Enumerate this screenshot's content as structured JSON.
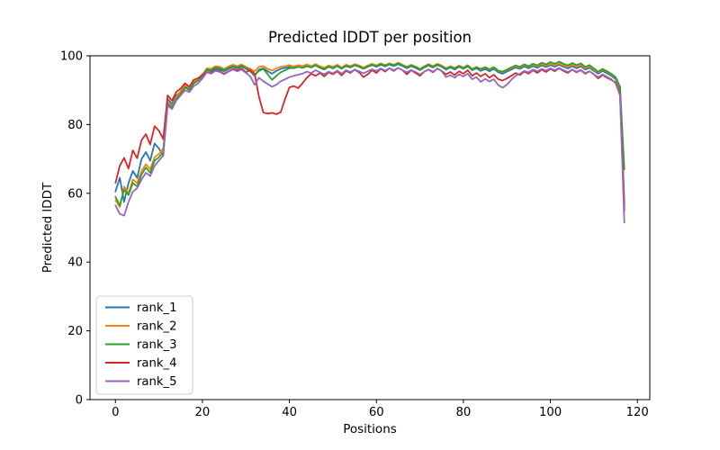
{
  "window": {
    "background": "#ffffff"
  },
  "chart_data": {
    "type": "line",
    "title": "Predicted lDDT per position",
    "xlabel": "Positions",
    "ylabel": "Predicted lDDT",
    "xlim": [
      -5.85,
      122.85
    ],
    "ylim": [
      0,
      100
    ],
    "xticks": [
      0,
      20,
      40,
      60,
      80,
      100,
      120
    ],
    "yticks": [
      0,
      20,
      40,
      60,
      80,
      100
    ],
    "grid": false,
    "legend_position": "lower left",
    "axis_color": "#000000",
    "x": [
      0,
      1,
      2,
      3,
      4,
      5,
      6,
      7,
      8,
      9,
      10,
      11,
      12,
      13,
      14,
      15,
      16,
      17,
      18,
      19,
      20,
      21,
      22,
      23,
      24,
      25,
      26,
      27,
      28,
      29,
      30,
      31,
      32,
      33,
      34,
      35,
      36,
      37,
      38,
      39,
      40,
      41,
      42,
      43,
      44,
      45,
      46,
      47,
      48,
      49,
      50,
      51,
      52,
      53,
      54,
      55,
      56,
      57,
      58,
      59,
      60,
      61,
      62,
      63,
      64,
      65,
      66,
      67,
      68,
      69,
      70,
      71,
      72,
      73,
      74,
      75,
      76,
      77,
      78,
      79,
      80,
      81,
      82,
      83,
      84,
      85,
      86,
      87,
      88,
      89,
      90,
      91,
      92,
      93,
      94,
      95,
      96,
      97,
      98,
      99,
      100,
      101,
      102,
      103,
      104,
      105,
      106,
      107,
      108,
      109,
      110,
      111,
      112,
      113,
      114,
      115,
      116,
      117
    ],
    "series": [
      {
        "name": "rank_1",
        "color": "#1f77b4",
        "values": [
          60.5,
          64.5,
          57.5,
          63.0,
          66.5,
          64.5,
          70.0,
          72.0,
          69.5,
          74.5,
          73.0,
          71.0,
          87.5,
          86.0,
          88.5,
          89.5,
          91.0,
          90.2,
          92.0,
          92.8,
          94.0,
          95.8,
          95.5,
          96.3,
          96.0,
          95.5,
          96.2,
          96.8,
          96.4,
          96.9,
          96.2,
          95.5,
          94.2,
          96.0,
          96.4,
          95.5,
          94.8,
          95.6,
          96.2,
          96.5,
          96.8,
          96.4,
          96.8,
          96.5,
          97.0,
          96.6,
          97.2,
          96.5,
          96.0,
          96.8,
          96.3,
          97.0,
          96.2,
          97.0,
          96.6,
          97.2,
          96.8,
          96.2,
          96.8,
          97.3,
          96.8,
          97.4,
          96.9,
          97.5,
          97.0,
          97.6,
          97.0,
          96.4,
          97.0,
          96.5,
          95.8,
          96.6,
          97.2,
          96.6,
          97.3,
          96.8,
          96.0,
          96.6,
          96.0,
          96.8,
          96.2,
          96.9,
          95.8,
          96.4,
          95.6,
          96.2,
          95.5,
          96.2,
          95.2,
          94.8,
          95.4,
          96.0,
          96.6,
          96.2,
          96.9,
          96.4,
          97.0,
          96.5,
          97.2,
          96.7,
          97.3,
          96.8,
          97.4,
          96.8,
          96.3,
          97.0,
          96.4,
          96.9,
          96.0,
          96.5,
          95.6,
          94.8,
          95.6,
          94.9,
          94.2,
          93.2,
          90.0,
          57.5
        ]
      },
      {
        "name": "rank_2",
        "color": "#ff7f0e",
        "values": [
          58.0,
          56.0,
          62.0,
          60.0,
          64.0,
          63.0,
          66.5,
          68.5,
          67.0,
          70.5,
          71.5,
          73.0,
          86.5,
          85.5,
          88.0,
          89.8,
          91.5,
          90.8,
          92.5,
          93.2,
          94.5,
          96.4,
          96.2,
          97.0,
          96.8,
          96.2,
          96.9,
          97.4,
          97.0,
          97.5,
          96.8,
          96.2,
          95.5,
          96.8,
          97.0,
          96.2,
          95.7,
          96.3,
          96.8,
          97.0,
          97.3,
          96.9,
          97.3,
          97.0,
          97.5,
          97.0,
          97.6,
          97.0,
          96.5,
          97.2,
          96.8,
          97.4,
          96.6,
          97.4,
          97.0,
          97.6,
          97.2,
          96.6,
          97.2,
          97.7,
          97.2,
          97.8,
          97.3,
          97.8,
          97.4,
          98.0,
          97.4,
          96.8,
          97.4,
          96.9,
          96.2,
          97.0,
          97.6,
          97.0,
          97.7,
          97.2,
          96.4,
          97.0,
          96.5,
          97.2,
          96.6,
          97.3,
          96.2,
          96.8,
          96.0,
          96.6,
          96.0,
          96.6,
          95.6,
          95.2,
          95.8,
          96.4,
          97.0,
          96.6,
          97.3,
          96.8,
          97.4,
          96.9,
          97.6,
          97.1,
          97.7,
          97.2,
          97.8,
          97.2,
          96.7,
          97.4,
          96.8,
          97.3,
          96.4,
          96.9,
          96.0,
          95.2,
          96.0,
          95.3,
          94.6,
          93.6,
          90.5,
          56.0
        ]
      },
      {
        "name": "rank_3",
        "color": "#2ca02c",
        "values": [
          59.0,
          56.5,
          61.0,
          59.5,
          63.0,
          62.0,
          65.5,
          67.5,
          66.0,
          69.5,
          70.5,
          72.0,
          86.0,
          85.0,
          87.5,
          89.0,
          90.8,
          90.0,
          92.0,
          92.8,
          94.2,
          96.0,
          95.8,
          96.6,
          96.4,
          95.8,
          96.5,
          97.0,
          96.6,
          97.2,
          96.4,
          95.8,
          94.3,
          95.6,
          96.2,
          94.6,
          93.0,
          94.2,
          95.2,
          95.8,
          96.4,
          96.5,
          96.8,
          96.5,
          97.0,
          96.7,
          97.3,
          96.6,
          96.1,
          96.9,
          96.4,
          97.1,
          96.3,
          97.1,
          96.7,
          97.3,
          96.9,
          96.3,
          96.9,
          97.4,
          97.0,
          97.6,
          97.1,
          97.7,
          97.2,
          97.8,
          97.2,
          96.6,
          97.2,
          96.7,
          96.0,
          96.8,
          97.4,
          96.8,
          97.5,
          97.0,
          96.2,
          96.8,
          96.3,
          97.0,
          96.4,
          97.1,
          96.0,
          96.6,
          96.2,
          96.7,
          96.1,
          96.7,
          95.7,
          95.4,
          96.0,
          96.6,
          97.2,
          96.8,
          97.5,
          97.0,
          97.7,
          97.2,
          98.0,
          97.5,
          98.2,
          97.7,
          98.3,
          97.7,
          97.2,
          97.9,
          97.3,
          97.8,
          96.8,
          97.3,
          96.3,
          95.4,
          96.2,
          95.5,
          94.8,
          93.8,
          91.0,
          67.0
        ]
      },
      {
        "name": "rank_4",
        "color": "#d62728",
        "values": [
          63.0,
          68.0,
          70.3,
          67.2,
          72.5,
          70.2,
          75.5,
          77.2,
          74.2,
          79.5,
          78.2,
          75.8,
          88.5,
          87.0,
          89.5,
          90.5,
          92.0,
          91.0,
          93.0,
          93.5,
          94.5,
          95.2,
          95.0,
          95.8,
          95.5,
          94.8,
          95.5,
          96.2,
          95.8,
          96.3,
          95.2,
          95.8,
          94.8,
          88.0,
          83.5,
          83.2,
          83.4,
          83.0,
          83.6,
          87.5,
          90.8,
          91.2,
          90.6,
          92.0,
          93.6,
          94.8,
          94.2,
          95.0,
          94.0,
          95.2,
          94.6,
          95.5,
          94.3,
          95.6,
          95.0,
          96.0,
          95.2,
          93.8,
          94.6,
          95.8,
          95.0,
          96.2,
          95.4,
          96.4,
          95.6,
          96.5,
          95.8,
          94.6,
          95.8,
          95.0,
          94.2,
          95.4,
          96.0,
          95.2,
          96.3,
          95.6,
          94.6,
          95.3,
          94.4,
          95.5,
          94.8,
          95.8,
          94.2,
          95.0,
          94.0,
          94.8,
          93.6,
          94.5,
          93.2,
          92.8,
          93.4,
          94.2,
          95.0,
          94.4,
          95.4,
          94.8,
          95.8,
          95.0,
          96.0,
          95.3,
          96.2,
          95.5,
          96.4,
          95.6,
          95.0,
          96.0,
          95.2,
          95.8,
          94.8,
          95.5,
          94.6,
          93.4,
          94.4,
          93.6,
          93.0,
          92.2,
          89.0,
          55.0
        ]
      },
      {
        "name": "rank_5",
        "color": "#9467bd",
        "values": [
          56.5,
          54.0,
          53.5,
          57.5,
          60.5,
          61.5,
          64.0,
          66.0,
          65.0,
          68.0,
          69.5,
          71.0,
          85.5,
          84.5,
          87.0,
          88.5,
          90.0,
          89.4,
          91.2,
          92.0,
          93.4,
          95.2,
          94.8,
          95.6,
          95.3,
          94.6,
          95.4,
          96.0,
          95.5,
          96.0,
          95.0,
          94.0,
          91.6,
          93.6,
          92.6,
          91.8,
          91.0,
          91.6,
          92.6,
          93.2,
          93.8,
          94.2,
          94.5,
          94.8,
          95.4,
          95.0,
          95.8,
          95.2,
          94.6,
          95.4,
          94.9,
          95.7,
          94.8,
          95.8,
          95.3,
          96.0,
          95.5,
          94.9,
          95.5,
          96.1,
          95.6,
          96.3,
          95.7,
          96.4,
          95.8,
          96.5,
          95.8,
          95.2,
          95.9,
          95.3,
          94.6,
          95.4,
          96.0,
          95.4,
          96.2,
          95.6,
          93.8,
          94.4,
          93.6,
          94.6,
          94.0,
          94.8,
          93.2,
          93.8,
          92.4,
          93.3,
          92.5,
          93.2,
          91.5,
          90.7,
          91.6,
          93.0,
          94.2,
          94.8,
          95.6,
          95.2,
          96.0,
          95.5,
          96.2,
          95.7,
          96.4,
          95.8,
          96.5,
          95.8,
          95.3,
          96.0,
          95.4,
          95.9,
          95.0,
          95.5,
          94.6,
          93.8,
          94.6,
          93.9,
          93.2,
          92.0,
          88.5,
          51.5
        ]
      }
    ],
    "legend": {
      "entries": [
        "rank_1",
        "rank_2",
        "rank_3",
        "rank_4",
        "rank_5"
      ],
      "border_color": "#cccccc",
      "background": "#ffffff"
    }
  }
}
